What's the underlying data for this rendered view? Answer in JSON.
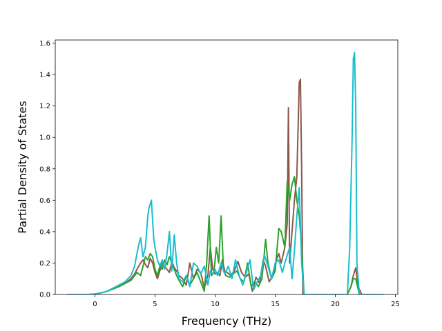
{
  "chart_data": {
    "type": "line",
    "title": "",
    "xlabel": "Frequency (THz)",
    "ylabel": "Partial Density of States",
    "xlim": [
      -3.3,
      25.2
    ],
    "ylim": [
      0,
      1.62
    ],
    "xticks": [
      0,
      5,
      10,
      15,
      20,
      25
    ],
    "yticks": [
      0.0,
      0.2,
      0.4,
      0.6,
      0.8,
      1.0,
      1.2,
      1.4,
      1.6
    ],
    "xtick_labels": [
      "0",
      "5",
      "10",
      "15",
      "20",
      "25"
    ],
    "ytick_labels": [
      "0.0",
      "0.2",
      "0.4",
      "0.6",
      "0.8",
      "1.0",
      "1.2",
      "1.4",
      "1.6"
    ],
    "grid": false,
    "legend": "none",
    "series": [
      {
        "color": "#8c564b",
        "x": [
          -2.3,
          -0.5,
          0,
          0.5,
          1,
          1.5,
          2,
          2.5,
          3,
          3.3,
          3.5,
          3.8,
          4.0,
          4.2,
          4.4,
          4.6,
          4.8,
          5.0,
          5.2,
          5.4,
          5.6,
          5.8,
          6.0,
          6.2,
          6.4,
          6.6,
          6.8,
          7.0,
          7.3,
          7.6,
          7.9,
          8.2,
          8.5,
          8.8,
          9.1,
          9.4,
          9.6,
          9.8,
          10.0,
          10.2,
          10.4,
          10.6,
          10.8,
          11.0,
          11.3,
          11.6,
          11.9,
          12.2,
          12.5,
          12.8,
          13.1,
          13.4,
          13.7,
          14.0,
          14.2,
          14.5,
          14.8,
          15.1,
          15.3,
          15.5,
          15.8,
          16.0,
          16.1,
          16.2,
          16.4,
          16.6,
          16.8,
          17.0,
          17.1,
          17.2,
          17.3,
          17.5,
          20.5,
          21.0,
          21.3,
          21.5,
          21.7,
          21.9,
          22.2,
          24.0
        ],
        "y": [
          0,
          0,
          0.003,
          0.01,
          0.02,
          0.035,
          0.05,
          0.07,
          0.1,
          0.13,
          0.16,
          0.2,
          0.22,
          0.19,
          0.17,
          0.23,
          0.2,
          0.14,
          0.1,
          0.15,
          0.2,
          0.18,
          0.16,
          0.14,
          0.21,
          0.17,
          0.15,
          0.12,
          0.1,
          0.06,
          0.2,
          0.1,
          0.16,
          0.14,
          0.04,
          0.12,
          0.3,
          0.16,
          0.13,
          0.14,
          0.12,
          0.22,
          0.15,
          0.14,
          0.12,
          0.15,
          0.21,
          0.14,
          0.11,
          0.13,
          0.02,
          0.11,
          0.07,
          0.22,
          0.18,
          0.08,
          0.12,
          0.22,
          0.26,
          0.2,
          0.3,
          0.45,
          1.19,
          0.2,
          0.4,
          0.6,
          0.75,
          1.35,
          1.37,
          0.8,
          0.0,
          0,
          0,
          0,
          0.05,
          0.12,
          0.17,
          0.05,
          0,
          0
        ]
      },
      {
        "color": "#2ca02c",
        "x": [
          -2.3,
          -0.5,
          0,
          0.5,
          1,
          1.5,
          2,
          2.5,
          3,
          3.3,
          3.5,
          3.8,
          4.0,
          4.2,
          4.4,
          4.6,
          4.8,
          5.0,
          5.2,
          5.4,
          5.6,
          5.8,
          6.0,
          6.2,
          6.4,
          6.6,
          6.8,
          7.0,
          7.3,
          7.6,
          7.9,
          8.2,
          8.5,
          8.8,
          9.1,
          9.3,
          9.5,
          9.7,
          9.9,
          10.1,
          10.3,
          10.5,
          10.7,
          10.9,
          11.2,
          11.5,
          11.8,
          12.1,
          12.4,
          12.7,
          13.0,
          13.3,
          13.6,
          13.9,
          14.2,
          14.4,
          14.7,
          15.0,
          15.3,
          15.5,
          15.8,
          16.0,
          16.2,
          16.4,
          16.6,
          16.8,
          17.0,
          17.2,
          17.4,
          20.5,
          21.0,
          21.3,
          21.5,
          21.7,
          22.0,
          24.0
        ],
        "y": [
          0,
          0,
          0.003,
          0.01,
          0.02,
          0.035,
          0.05,
          0.07,
          0.09,
          0.12,
          0.14,
          0.12,
          0.18,
          0.24,
          0.22,
          0.26,
          0.24,
          0.16,
          0.12,
          0.18,
          0.16,
          0.22,
          0.19,
          0.24,
          0.2,
          0.16,
          0.12,
          0.09,
          0.05,
          0.12,
          0.06,
          0.1,
          0.14,
          0.08,
          0.02,
          0.2,
          0.5,
          0.12,
          0.14,
          0.3,
          0.2,
          0.5,
          0.15,
          0.12,
          0.11,
          0.13,
          0.15,
          0.1,
          0.08,
          0.2,
          0.05,
          0.08,
          0.05,
          0.1,
          0.35,
          0.2,
          0.1,
          0.15,
          0.42,
          0.4,
          0.3,
          0.72,
          0.6,
          0.7,
          0.75,
          0.6,
          0.5,
          0.3,
          0,
          0,
          0,
          0.05,
          0.1,
          0.1,
          0,
          0
        ]
      },
      {
        "color": "#17becf",
        "x": [
          -2.3,
          -0.5,
          0,
          0.5,
          1,
          1.5,
          2,
          2.5,
          3,
          3.3,
          3.6,
          3.8,
          4.0,
          4.2,
          4.4,
          4.5,
          4.7,
          4.9,
          5.0,
          5.2,
          5.4,
          5.6,
          5.8,
          6.0,
          6.2,
          6.4,
          6.6,
          6.8,
          7.0,
          7.3,
          7.6,
          7.9,
          8.2,
          8.5,
          8.8,
          9.1,
          9.4,
          9.6,
          9.8,
          10.0,
          10.2,
          10.5,
          10.8,
          11.1,
          11.4,
          11.7,
          12.0,
          12.3,
          12.6,
          12.9,
          13.2,
          13.5,
          13.8,
          14.1,
          14.4,
          14.7,
          15.0,
          15.3,
          15.6,
          15.8,
          16.0,
          16.2,
          16.4,
          16.6,
          16.8,
          17.0,
          17.2,
          17.4,
          20.5,
          21.0,
          21.2,
          21.4,
          21.5,
          21.6,
          21.7,
          21.8,
          22.0,
          24.0
        ],
        "y": [
          0,
          0,
          0.003,
          0.01,
          0.02,
          0.04,
          0.06,
          0.08,
          0.12,
          0.18,
          0.3,
          0.36,
          0.24,
          0.3,
          0.5,
          0.55,
          0.6,
          0.35,
          0.3,
          0.22,
          0.18,
          0.22,
          0.16,
          0.26,
          0.4,
          0.15,
          0.38,
          0.2,
          0.1,
          0.08,
          0.12,
          0.05,
          0.2,
          0.18,
          0.13,
          0.18,
          0.06,
          0.15,
          0.13,
          0.16,
          0.12,
          0.2,
          0.13,
          0.18,
          0.1,
          0.22,
          0.12,
          0.06,
          0.14,
          0.22,
          0.03,
          0.08,
          0.12,
          0.25,
          0.18,
          0.1,
          0.2,
          0.22,
          0.14,
          0.2,
          0.25,
          0.3,
          0.1,
          0.28,
          0.5,
          0.68,
          0.2,
          0,
          0,
          0,
          0.3,
          1.0,
          1.5,
          1.54,
          1.2,
          0.2,
          0,
          0
        ]
      }
    ]
  }
}
